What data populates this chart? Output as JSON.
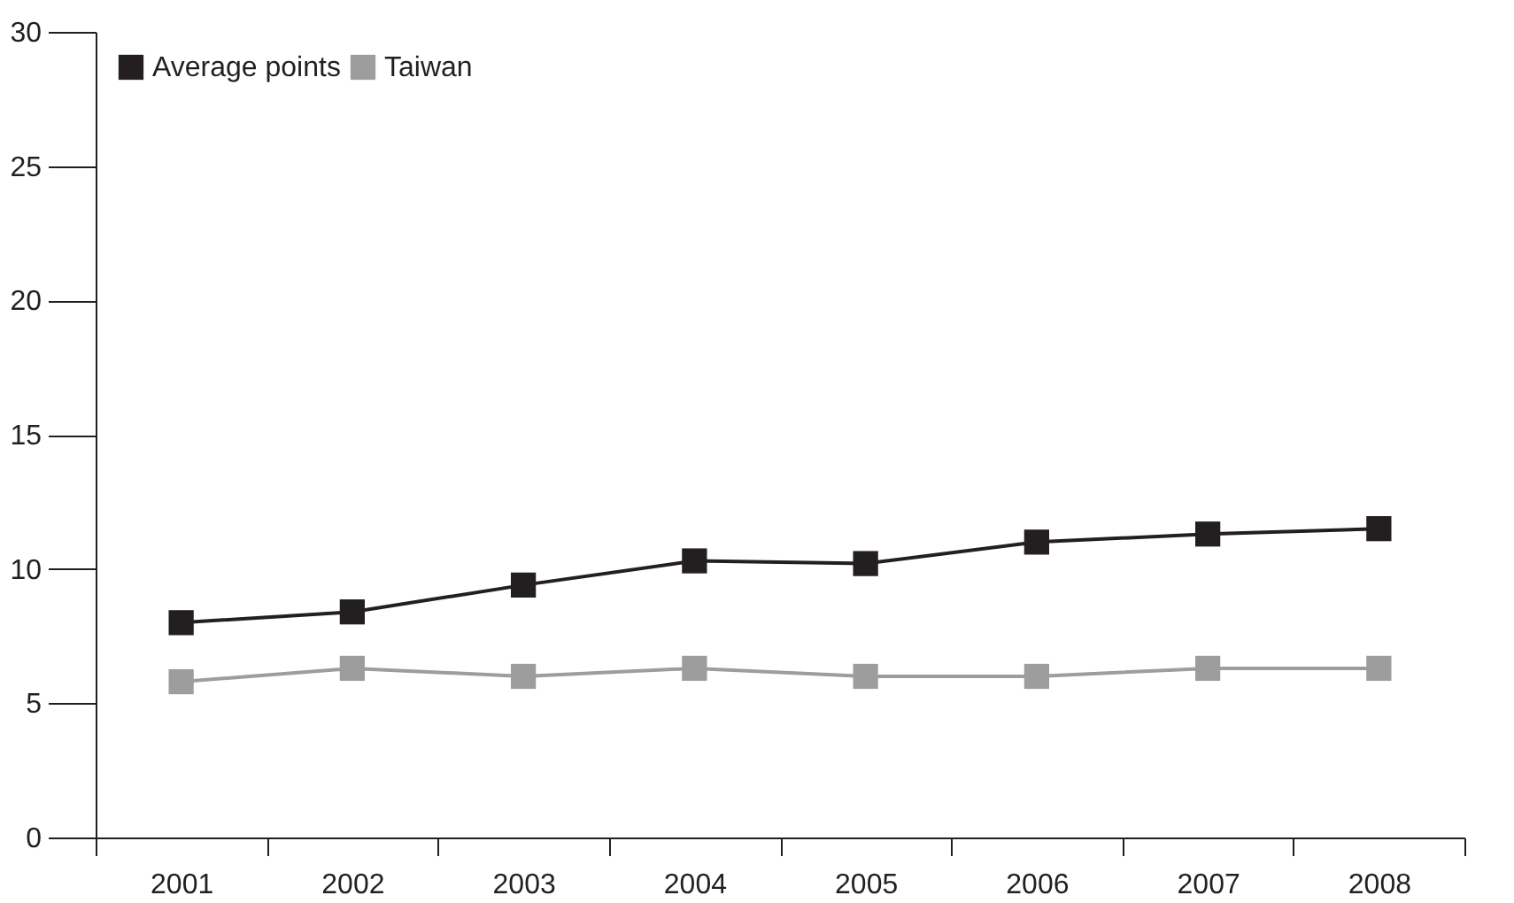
{
  "chart_data": {
    "type": "line",
    "categories": [
      "2001",
      "2002",
      "2003",
      "2004",
      "2005",
      "2006",
      "2007",
      "2008"
    ],
    "series": [
      {
        "name": "Average points",
        "color": "#231f20",
        "values": [
          8.0,
          8.4,
          9.4,
          10.3,
          10.2,
          11.0,
          11.3,
          11.5
        ]
      },
      {
        "name": "Taiwan",
        "color": "#9d9d9d",
        "values": [
          5.8,
          6.3,
          6.0,
          6.3,
          6.0,
          6.0,
          6.3,
          6.3
        ]
      }
    ],
    "ylim": [
      0,
      30
    ],
    "yticks": [
      0,
      5,
      10,
      15,
      20,
      25,
      30
    ],
    "grid": false,
    "legend": "top left",
    "marker": "square",
    "line_style": "solid"
  }
}
